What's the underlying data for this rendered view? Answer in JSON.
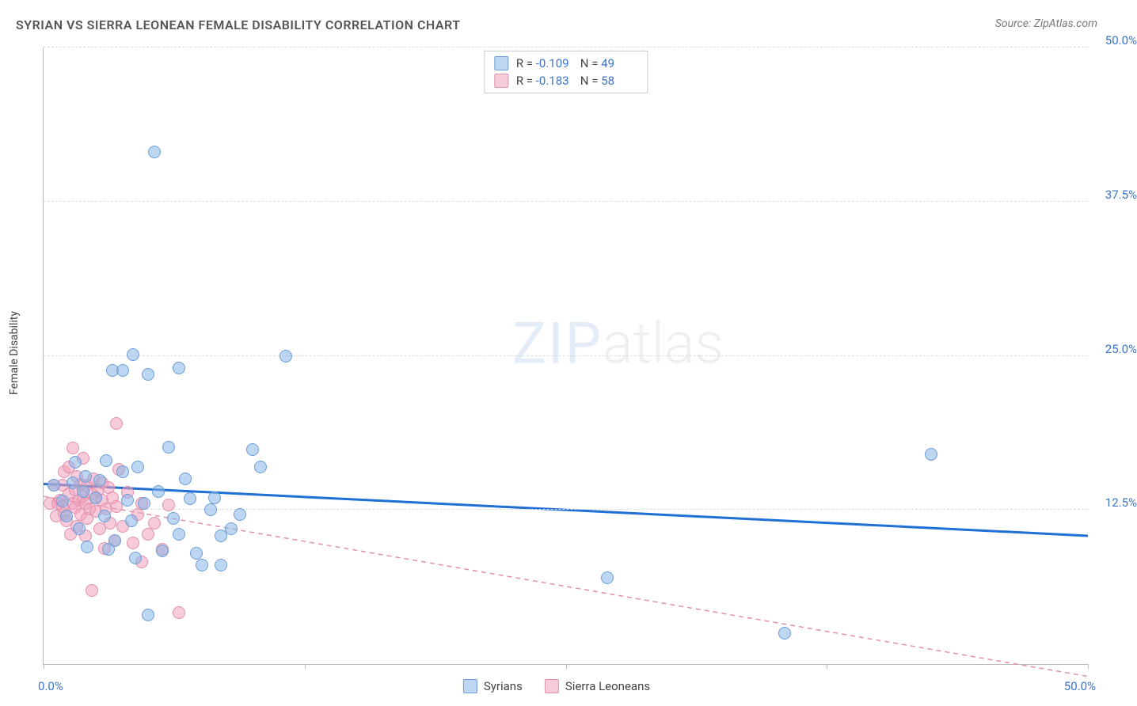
{
  "title": "SYRIAN VS SIERRA LEONEAN FEMALE DISABILITY CORRELATION CHART",
  "source_prefix": "Source: ",
  "source_name": "ZipAtlas.com",
  "ylabel": "Female Disability",
  "watermark_a": "ZIP",
  "watermark_b": "atlas",
  "colors": {
    "series1_fill": "rgba(135,180,230,0.55)",
    "series1_stroke": "#6c9dd8",
    "series2_fill": "rgba(240,160,185,0.55)",
    "series2_stroke": "#e28fae",
    "trend1": "#1f6fd4",
    "trend2": "#e28fae",
    "axis_text": "#3b74c8"
  },
  "axes": {
    "xlim": [
      0,
      50
    ],
    "ylim": [
      0,
      50
    ],
    "xmin_label": "0.0%",
    "xmax_label": "50.0%",
    "yticks": [
      12.5,
      25.0,
      37.5,
      50.0
    ],
    "ytick_labels": [
      "12.5%",
      "25.0%",
      "37.5%",
      "50.0%"
    ],
    "xtick_positions": [
      0,
      12.5,
      25,
      37.5,
      50
    ]
  },
  "series": [
    {
      "name": "Syrians",
      "R_label": "R = ",
      "R": "-0.109",
      "N_label": "N = ",
      "N": "49",
      "marker_r": 8,
      "trend": {
        "y_at_xmin": 14.6,
        "y_at_xmax": 10.4,
        "dashed": false,
        "width": 3
      },
      "points": [
        [
          0.5,
          14.5
        ],
        [
          0.9,
          13.2
        ],
        [
          1.1,
          12.0
        ],
        [
          1.4,
          14.7
        ],
        [
          1.5,
          16.4
        ],
        [
          1.7,
          11.0
        ],
        [
          1.9,
          14.0
        ],
        [
          2.0,
          15.2
        ],
        [
          2.1,
          9.5
        ],
        [
          2.5,
          13.5
        ],
        [
          2.7,
          14.9
        ],
        [
          2.9,
          12.0
        ],
        [
          3.0,
          16.5
        ],
        [
          3.3,
          23.8
        ],
        [
          3.4,
          10.0
        ],
        [
          3.8,
          15.6
        ],
        [
          3.8,
          23.8
        ],
        [
          4.0,
          13.3
        ],
        [
          4.3,
          25.1
        ],
        [
          4.4,
          8.6
        ],
        [
          4.5,
          16.0
        ],
        [
          4.8,
          13.0
        ],
        [
          5.0,
          23.5
        ],
        [
          5.3,
          41.5
        ],
        [
          5.5,
          14.0
        ],
        [
          5.7,
          9.2
        ],
        [
          6.0,
          17.6
        ],
        [
          6.2,
          11.8
        ],
        [
          6.5,
          10.5
        ],
        [
          6.5,
          24.0
        ],
        [
          7.0,
          13.4
        ],
        [
          7.3,
          9.0
        ],
        [
          7.6,
          8.0
        ],
        [
          8.0,
          12.5
        ],
        [
          8.2,
          13.5
        ],
        [
          8.5,
          10.4
        ],
        [
          8.5,
          8.0
        ],
        [
          9.4,
          12.1
        ],
        [
          10.0,
          17.4
        ],
        [
          10.4,
          16.0
        ],
        [
          11.6,
          25.0
        ],
        [
          27.0,
          7.0
        ],
        [
          35.5,
          2.5
        ],
        [
          42.5,
          17.0
        ],
        [
          5.0,
          4.0
        ],
        [
          4.2,
          11.6
        ],
        [
          3.1,
          9.3
        ],
        [
          6.8,
          15.0
        ],
        [
          9.0,
          11.0
        ]
      ]
    },
    {
      "name": "Sierra Leoneans",
      "R_label": "R = ",
      "R": "-0.183",
      "N_label": "N = ",
      "N": "58",
      "marker_r": 8,
      "trend": {
        "y_at_xmin": 13.6,
        "y_at_xmax": -1.0,
        "dashed": true,
        "width": 1.5
      },
      "points": [
        [
          0.3,
          13.0
        ],
        [
          0.5,
          14.5
        ],
        [
          0.6,
          12.0
        ],
        [
          0.7,
          13.0
        ],
        [
          0.8,
          13.3
        ],
        [
          0.9,
          12.8
        ],
        [
          0.9,
          14.5
        ],
        [
          1.0,
          15.6
        ],
        [
          1.0,
          12.2
        ],
        [
          1.1,
          11.6
        ],
        [
          1.2,
          13.8
        ],
        [
          1.2,
          16.0
        ],
        [
          1.3,
          10.5
        ],
        [
          1.4,
          13.0
        ],
        [
          1.4,
          17.5
        ],
        [
          1.5,
          12.7
        ],
        [
          1.5,
          14.1
        ],
        [
          1.6,
          15.2
        ],
        [
          1.6,
          11.2
        ],
        [
          1.7,
          13.3
        ],
        [
          1.8,
          12.1
        ],
        [
          1.8,
          14.6
        ],
        [
          1.9,
          13.6
        ],
        [
          1.9,
          16.7
        ],
        [
          2.0,
          10.4
        ],
        [
          2.0,
          13.0
        ],
        [
          2.1,
          14.5
        ],
        [
          2.1,
          11.8
        ],
        [
          2.2,
          12.6
        ],
        [
          2.3,
          6.0
        ],
        [
          2.3,
          13.8
        ],
        [
          2.4,
          15.0
        ],
        [
          2.5,
          12.4
        ],
        [
          2.5,
          13.5
        ],
        [
          2.6,
          14.1
        ],
        [
          2.7,
          11.0
        ],
        [
          2.8,
          13.3
        ],
        [
          2.8,
          14.7
        ],
        [
          2.9,
          9.4
        ],
        [
          3.0,
          12.6
        ],
        [
          3.1,
          14.3
        ],
        [
          3.2,
          11.4
        ],
        [
          3.3,
          13.5
        ],
        [
          3.4,
          10.0
        ],
        [
          3.5,
          12.8
        ],
        [
          3.5,
          19.5
        ],
        [
          3.8,
          11.2
        ],
        [
          4.0,
          13.9
        ],
        [
          4.3,
          9.8
        ],
        [
          4.5,
          12.1
        ],
        [
          4.7,
          8.3
        ],
        [
          4.7,
          13.0
        ],
        [
          5.0,
          10.5
        ],
        [
          5.3,
          11.4
        ],
        [
          5.7,
          9.3
        ],
        [
          6.5,
          4.2
        ],
        [
          6.0,
          12.9
        ],
        [
          3.6,
          15.8
        ]
      ]
    }
  ]
}
